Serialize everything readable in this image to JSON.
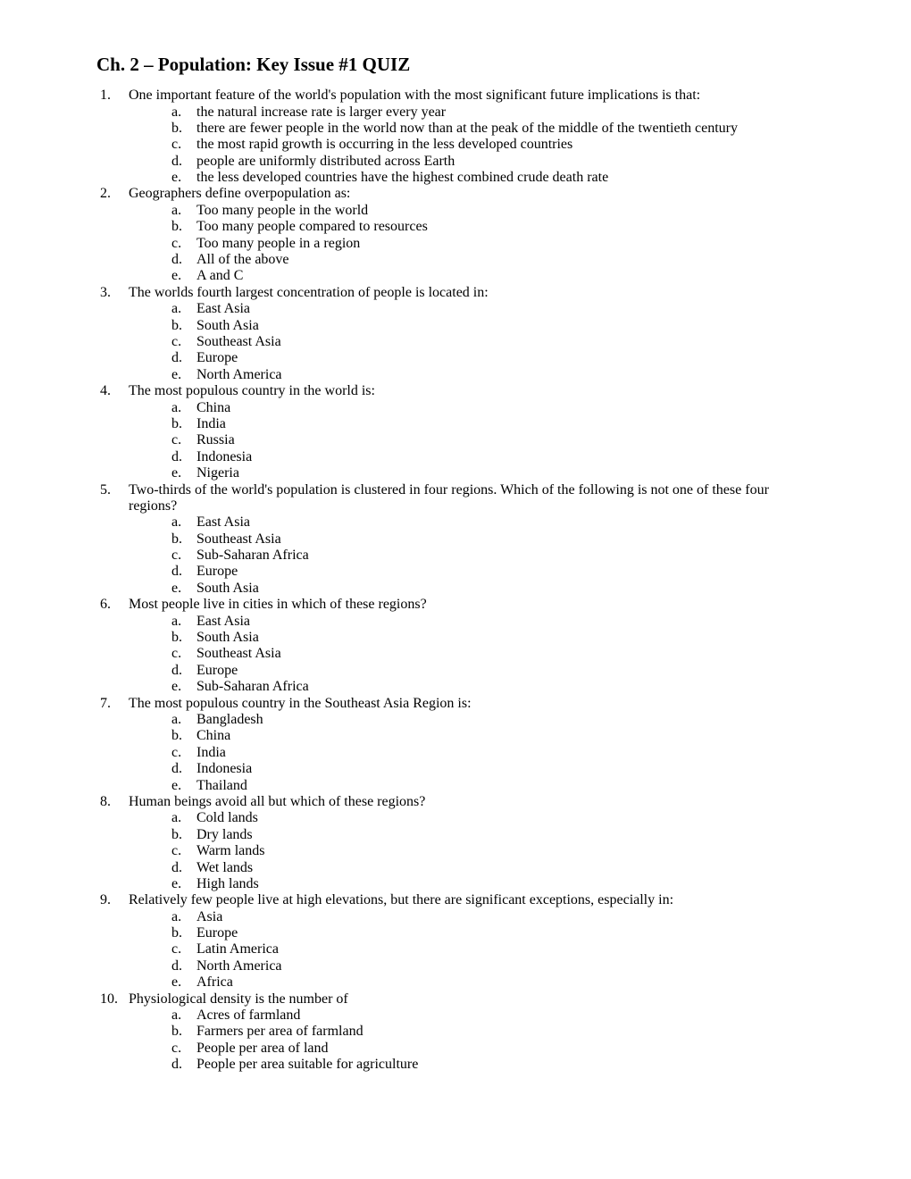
{
  "title": "Ch. 2 – Population: Key Issue #1 QUIZ",
  "questions": [
    {
      "num": "1.",
      "text": "One important feature of the world's population with the most significant future implications is that:",
      "options": [
        {
          "letter": "a.",
          "text": "the natural increase rate is larger every year"
        },
        {
          "letter": "b.",
          "text": "there are fewer people in the world now than at the peak of the middle of the twentieth century"
        },
        {
          "letter": "c.",
          "text": "the most rapid growth is occurring in the less developed countries"
        },
        {
          "letter": "d.",
          "text": "people are uniformly distributed across Earth"
        },
        {
          "letter": "e.",
          "text": "the less developed countries have the highest combined crude death rate"
        }
      ]
    },
    {
      "num": "2.",
      "text": "Geographers define overpopulation as:",
      "options": [
        {
          "letter": "a.",
          "text": "Too many people in the world"
        },
        {
          "letter": "b.",
          "text": "Too many people compared to resources"
        },
        {
          "letter": "c.",
          "text": "Too many people in a region"
        },
        {
          "letter": "d.",
          "text": "All of the above"
        },
        {
          "letter": "e.",
          "text": "A and C"
        }
      ]
    },
    {
      "num": "3.",
      "text": "The worlds fourth largest concentration of people is located in:",
      "options": [
        {
          "letter": "a.",
          "text": "East Asia"
        },
        {
          "letter": "b.",
          "text": "South Asia"
        },
        {
          "letter": "c.",
          "text": "Southeast Asia"
        },
        {
          "letter": "d.",
          "text": "Europe"
        },
        {
          "letter": "e.",
          "text": "North America"
        }
      ]
    },
    {
      "num": "4.",
      "text": "The most populous country in the world is:",
      "options": [
        {
          "letter": "a.",
          "text": "China"
        },
        {
          "letter": "b.",
          "text": "India"
        },
        {
          "letter": "c.",
          "text": "Russia"
        },
        {
          "letter": "d.",
          "text": "Indonesia"
        },
        {
          "letter": "e.",
          "text": "Nigeria"
        }
      ]
    },
    {
      "num": "5.",
      "text": "Two-thirds of the world's population is clustered in four regions.  Which of the following is not one of these four regions?",
      "options": [
        {
          "letter": "a.",
          "text": "East Asia"
        },
        {
          "letter": "b.",
          "text": "Southeast Asia"
        },
        {
          "letter": "c.",
          "text": "Sub-Saharan Africa"
        },
        {
          "letter": "d.",
          "text": "Europe"
        },
        {
          "letter": "e.",
          "text": "South Asia"
        }
      ]
    },
    {
      "num": "6.",
      "text": "Most people live in cities in which of these regions?",
      "options": [
        {
          "letter": "a.",
          "text": "East Asia"
        },
        {
          "letter": "b.",
          "text": "South Asia"
        },
        {
          "letter": "c.",
          "text": "Southeast Asia"
        },
        {
          "letter": "d.",
          "text": "Europe"
        },
        {
          "letter": "e.",
          "text": "Sub-Saharan Africa"
        }
      ]
    },
    {
      "num": "7.",
      "text": "The most populous country in the Southeast Asia Region is:",
      "options": [
        {
          "letter": "a.",
          "text": "Bangladesh"
        },
        {
          "letter": "b.",
          "text": "China"
        },
        {
          "letter": "c.",
          "text": "India"
        },
        {
          "letter": "d.",
          "text": "Indonesia"
        },
        {
          "letter": "e.",
          "text": "Thailand"
        }
      ]
    },
    {
      "num": "8.",
      "text": "Human beings avoid all but which of these regions?",
      "options": [
        {
          "letter": "a.",
          "text": "Cold lands"
        },
        {
          "letter": "b.",
          "text": "Dry lands"
        },
        {
          "letter": "c.",
          "text": "Warm lands"
        },
        {
          "letter": "d.",
          "text": "Wet lands"
        },
        {
          "letter": "e.",
          "text": "High lands"
        }
      ]
    },
    {
      "num": "9.",
      "text": "Relatively few people live at high elevations, but there are significant exceptions, especially in:",
      "options": [
        {
          "letter": "a.",
          "text": "Asia"
        },
        {
          "letter": "b.",
          "text": "Europe"
        },
        {
          "letter": "c.",
          "text": "Latin America"
        },
        {
          "letter": "d.",
          "text": "North America"
        },
        {
          "letter": "e.",
          "text": "Africa"
        }
      ]
    },
    {
      "num": "10.",
      "text": "Physiological density is the number of",
      "options": [
        {
          "letter": "a.",
          "text": "Acres of farmland"
        },
        {
          "letter": "b.",
          "text": "Farmers per area of farmland"
        },
        {
          "letter": "c.",
          "text": "People per area of land"
        },
        {
          "letter": "d.",
          "text": "People per area suitable for agriculture"
        }
      ]
    }
  ]
}
